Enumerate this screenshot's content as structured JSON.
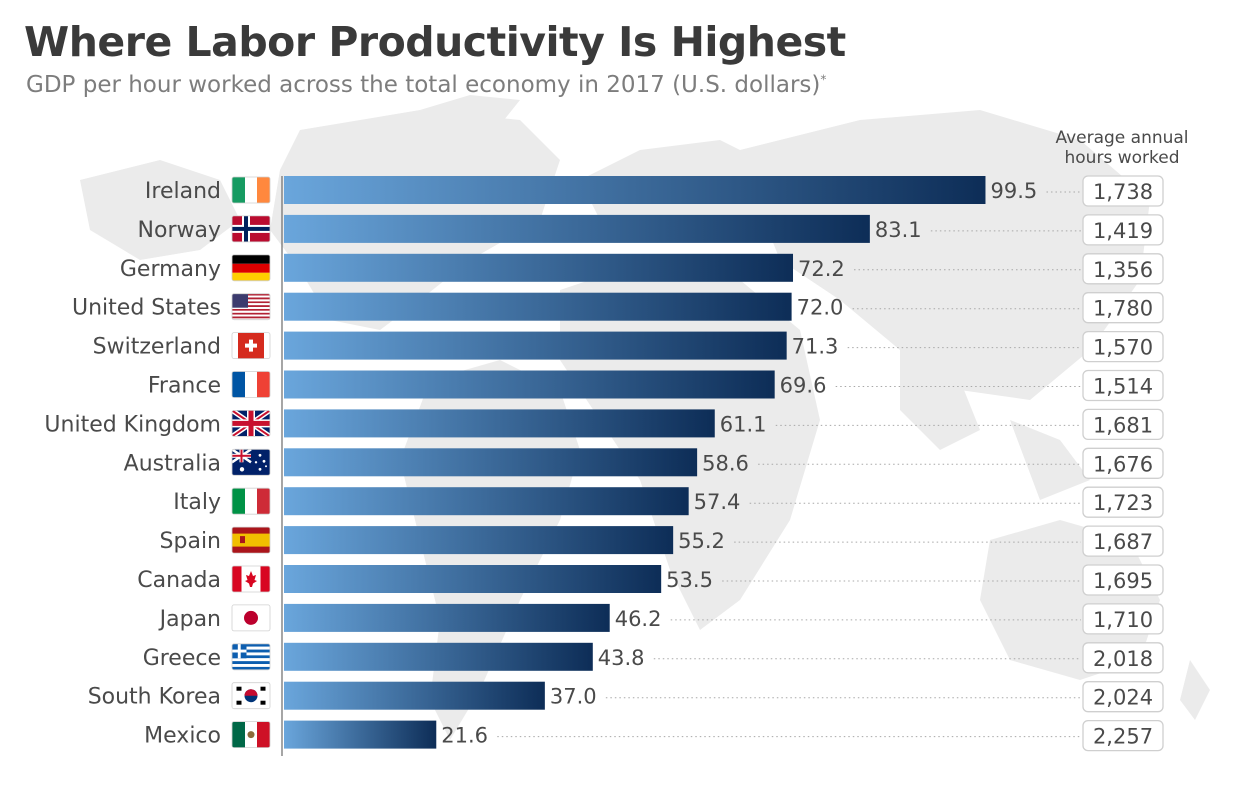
{
  "title": "Where Labor Productivity Is Highest",
  "subtitle": "GDP per hour worked across the total economy in 2017 (U.S. dollars)",
  "subtitle_mark": "*",
  "hours_header": [
    "Average annual",
    "hours worked"
  ],
  "colors": {
    "bar_start": "#6aa6dc",
    "bar_end": "#0d2d57",
    "label": "#4a4a4a",
    "box_border": "#cfcfcf",
    "map": "#e6e6e6"
  },
  "chart_data": {
    "type": "bar",
    "orientation": "horizontal",
    "title": "Where Labor Productivity Is Highest",
    "subtitle": "GDP per hour worked across the total economy in 2017 (U.S. dollars)",
    "xlim": [
      0,
      120
    ],
    "grid": false,
    "categories": [
      "Ireland",
      "Norway",
      "Germany",
      "United States",
      "Switzerland",
      "France",
      "United Kingdom",
      "Australia",
      "Italy",
      "Spain",
      "Canada",
      "Japan",
      "Greece",
      "South Korea",
      "Mexico"
    ],
    "flags": [
      "ireland-flag-icon",
      "norway-flag-icon",
      "germany-flag-icon",
      "united-states-flag-icon",
      "switzerland-flag-icon",
      "france-flag-icon",
      "united-kingdom-flag-icon",
      "australia-flag-icon",
      "italy-flag-icon",
      "spain-flag-icon",
      "canada-flag-icon",
      "japan-flag-icon",
      "greece-flag-icon",
      "south-korea-flag-icon",
      "mexico-flag-icon"
    ],
    "values": [
      99.5,
      83.1,
      72.2,
      72.0,
      71.3,
      69.6,
      61.1,
      58.6,
      57.4,
      55.2,
      53.5,
      46.2,
      43.8,
      37.0,
      21.6
    ],
    "value_labels": [
      "99.5",
      "83.1",
      "72.2",
      "72.0",
      "71.3",
      "69.6",
      "61.1",
      "58.6",
      "57.4",
      "55.2",
      "53.5",
      "46.2",
      "43.8",
      "37.0",
      "21.6"
    ],
    "hours": [
      "1,738",
      "1,419",
      "1,356",
      "1,780",
      "1,570",
      "1,514",
      "1,681",
      "1,676",
      "1,723",
      "1,687",
      "1,695",
      "1,710",
      "2,018",
      "2,024",
      "2,257"
    ]
  }
}
